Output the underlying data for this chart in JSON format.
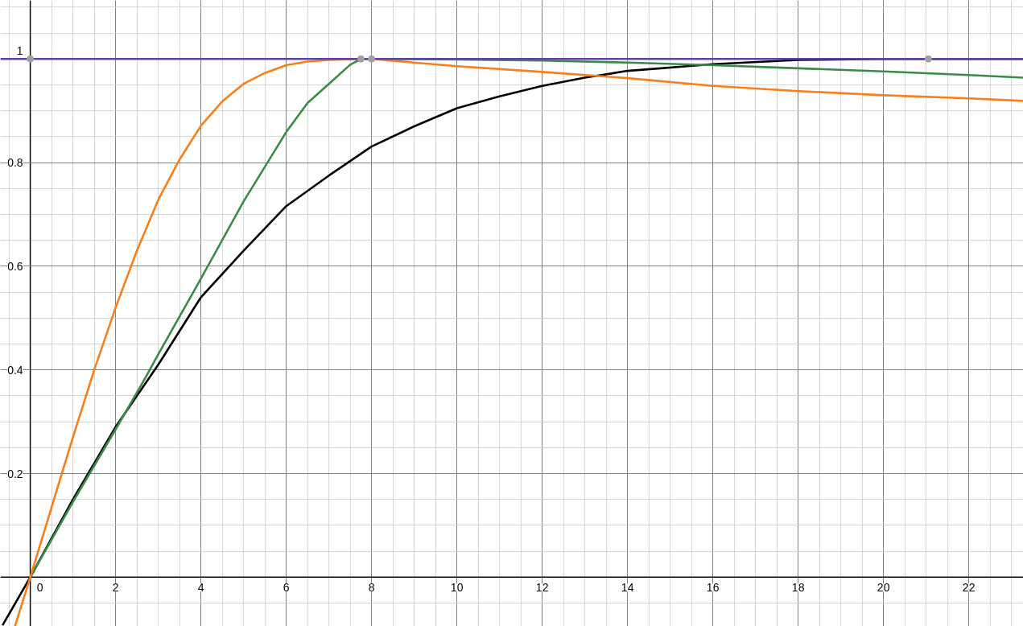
{
  "chart_data": {
    "type": "line",
    "xlim": [
      -0.7,
      23.28
    ],
    "ylim": [
      -0.095,
      1.113
    ],
    "xticks": [
      0,
      2,
      4,
      6,
      8,
      10,
      12,
      14,
      16,
      18,
      20,
      22
    ],
    "yticks": [
      0.2,
      0.4,
      0.6,
      0.8,
      1
    ],
    "grid": true,
    "marker": "none",
    "line_style": "solid",
    "series": [
      {
        "color": "#000000",
        "x": [
          -0.65,
          0,
          1,
          2,
          3,
          4,
          5,
          6,
          7,
          8,
          9,
          10,
          11,
          12,
          13,
          14,
          16,
          18,
          20,
          23.28
        ],
        "values": [
          -0.093,
          0,
          0.15,
          0.29,
          0.41,
          0.54,
          0.63,
          0.716,
          0.775,
          0.831,
          0.87,
          0.905,
          0.928,
          0.948,
          0.964,
          0.977,
          0.99,
          0.998,
          1,
          1
        ]
      },
      {
        "color": "#388c46",
        "x": [
          0,
          1,
          2,
          2.7,
          3,
          4,
          5,
          6,
          6.5,
          7,
          7.5,
          7.75,
          8,
          10,
          12,
          14,
          16,
          18,
          20,
          22,
          23.28
        ],
        "values": [
          0,
          0.145,
          0.285,
          0.385,
          0.43,
          0.576,
          0.725,
          0.859,
          0.915,
          0.952,
          0.989,
          1,
          1,
          0.999,
          0.997,
          0.993,
          0.988,
          0.982,
          0.976,
          0.969,
          0.964
        ]
      },
      {
        "color": "#fa7e19",
        "x": [
          -0.36,
          0,
          0.5,
          1,
          1.5,
          2,
          2.5,
          3,
          3.5,
          4,
          4.5,
          5,
          5.5,
          6,
          6.5,
          7,
          7.75,
          8,
          10,
          12,
          14,
          16,
          18,
          20,
          22,
          23.28
        ],
        "values": [
          -0.095,
          0,
          0.135,
          0.27,
          0.4,
          0.52,
          0.63,
          0.728,
          0.806,
          0.871,
          0.918,
          0.952,
          0.973,
          0.988,
          0.995,
          0.998,
          1,
          1,
          0.986,
          0.975,
          0.963,
          0.948,
          0.938,
          0.93,
          0.924,
          0.919
        ]
      },
      {
        "color": "#6042a6",
        "x": [
          -0.7,
          23.28
        ],
        "values": [
          1,
          1
        ]
      },
      {
        "type": "scatter",
        "marker": "circle",
        "color": "#a0a0a0",
        "x": [
          0,
          7.75,
          8,
          21.05
        ],
        "values": [
          1,
          1,
          1,
          1
        ]
      }
    ]
  }
}
